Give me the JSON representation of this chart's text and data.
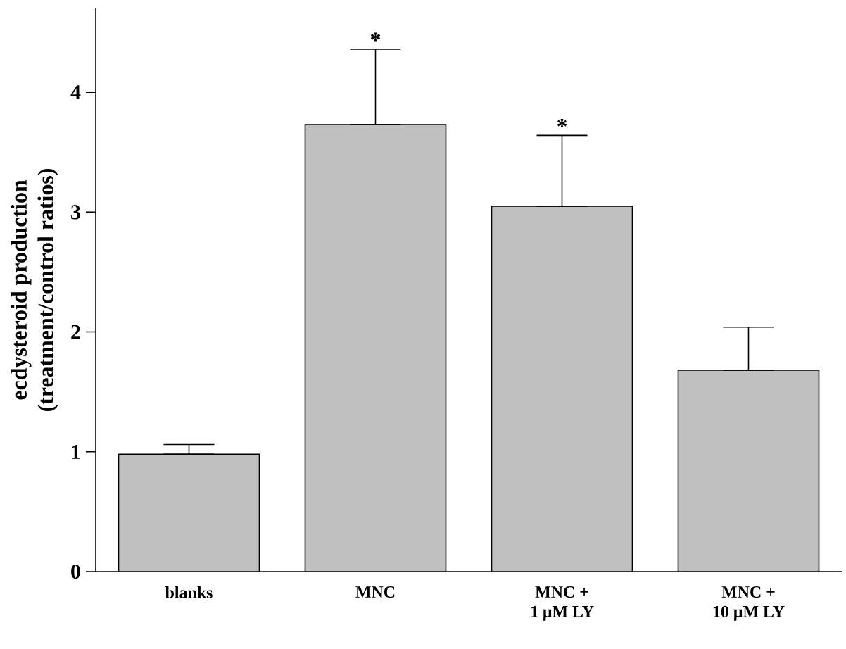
{
  "chart_data": {
    "type": "bar",
    "ylabel": "ecdysteroid production\n(treatment/control ratios)",
    "categories": [
      "blanks",
      "MNC",
      "MNC +\n1 μM LY",
      "MNC +\n10 μM LY"
    ],
    "values": [
      0.98,
      3.73,
      3.05,
      1.68
    ],
    "errors": [
      [
        0.98,
        1.06
      ],
      [
        3.73,
        4.36
      ],
      [
        3.05,
        3.64
      ],
      [
        1.68,
        2.04
      ]
    ],
    "color": "#c0c0c0",
    "ylim": [
      0,
      4.7
    ],
    "yticks": [
      0,
      1,
      2,
      3,
      4
    ],
    "annotations": [
      {
        "text": "*",
        "x": "MNC",
        "y": 4.36
      },
      {
        "text": "*",
        "x": "MNC +\n1 μM LY",
        "y": 3.64
      }
    ]
  }
}
